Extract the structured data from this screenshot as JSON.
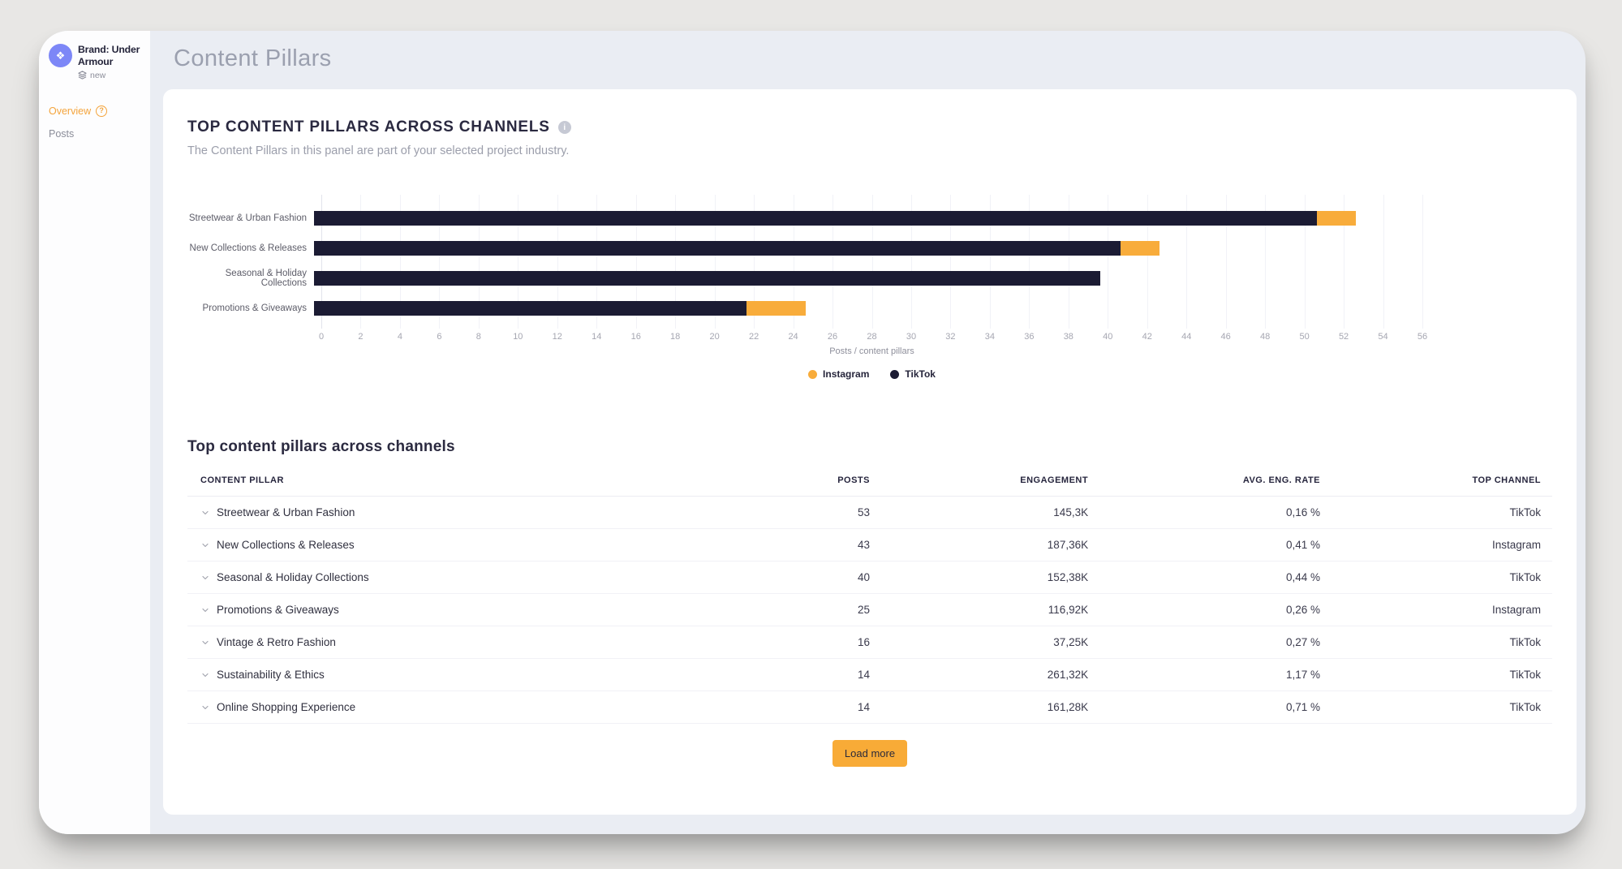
{
  "sidebar": {
    "brand_label": "Brand: Under Armour",
    "brand_tag": "new",
    "items": [
      {
        "label": "Overview",
        "active": true,
        "has_help": true
      },
      {
        "label": "Posts",
        "active": false,
        "has_help": false
      }
    ]
  },
  "header": {
    "title": "Content Pillars"
  },
  "panel": {
    "title": "TOP CONTENT PILLARS ACROSS CHANNELS",
    "subtitle": "The Content Pillars in this panel are part of your selected project industry."
  },
  "icons": {
    "avatar_glyph": "❖",
    "info_glyph": "i",
    "help_glyph": "?"
  },
  "chart_data": {
    "type": "bar",
    "orientation": "horizontal",
    "stacked": true,
    "categories": [
      "Streetwear & Urban Fashion",
      "New Collections & Releases",
      "Seasonal & Holiday Collections",
      "Promotions & Giveaways"
    ],
    "series": [
      {
        "name": "TikTok",
        "color": "#1b1b33",
        "values": [
          51,
          41,
          40,
          22
        ]
      },
      {
        "name": "Instagram",
        "color": "#f8ac3b",
        "values": [
          2,
          2,
          0,
          3
        ]
      }
    ],
    "totals": [
      53,
      43,
      40,
      25
    ],
    "xlabel": "Posts / content pillars",
    "xlim": [
      0,
      56
    ],
    "xticks": [
      0,
      2,
      4,
      6,
      8,
      10,
      12,
      14,
      16,
      18,
      20,
      22,
      24,
      26,
      28,
      30,
      32,
      34,
      36,
      38,
      40,
      42,
      44,
      46,
      48,
      50,
      52,
      54,
      56
    ],
    "grid": true,
    "legend_position": "bottom",
    "legend": [
      {
        "label": "Instagram",
        "color": "#f8ac3b"
      },
      {
        "label": "TikTok",
        "color": "#1b1b33"
      }
    ]
  },
  "table": {
    "title": "Top content pillars across channels",
    "columns": [
      "CONTENT PILLAR",
      "POSTS",
      "ENGAGEMENT",
      "AVG. ENG. RATE",
      "TOP CHANNEL"
    ],
    "rows": [
      {
        "pillar": "Streetwear & Urban Fashion",
        "posts": "53",
        "engagement": "145,3K",
        "avg_eng_rate": "0,16 %",
        "top_channel": "TikTok"
      },
      {
        "pillar": "New Collections & Releases",
        "posts": "43",
        "engagement": "187,36K",
        "avg_eng_rate": "0,41 %",
        "top_channel": "Instagram"
      },
      {
        "pillar": "Seasonal & Holiday Collections",
        "posts": "40",
        "engagement": "152,38K",
        "avg_eng_rate": "0,44 %",
        "top_channel": "TikTok"
      },
      {
        "pillar": "Promotions & Giveaways",
        "posts": "25",
        "engagement": "116,92K",
        "avg_eng_rate": "0,26 %",
        "top_channel": "Instagram"
      },
      {
        "pillar": "Vintage & Retro Fashion",
        "posts": "16",
        "engagement": "37,25K",
        "avg_eng_rate": "0,27 %",
        "top_channel": "TikTok"
      },
      {
        "pillar": "Sustainability & Ethics",
        "posts": "14",
        "engagement": "261,32K",
        "avg_eng_rate": "1,17 %",
        "top_channel": "TikTok"
      },
      {
        "pillar": "Online Shopping Experience",
        "posts": "14",
        "engagement": "161,28K",
        "avg_eng_rate": "0,71 %",
        "top_channel": "TikTok"
      }
    ],
    "load_more_label": "Load more"
  },
  "colors": {
    "accent_orange": "#f8ab37",
    "brand_navy": "#1b1b33",
    "avatar_bg": "#7d87f7",
    "content_bg": "#eaedf3",
    "panel_bg": "#ffffff"
  }
}
